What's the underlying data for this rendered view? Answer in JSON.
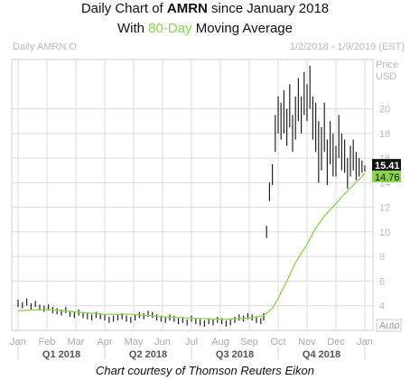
{
  "header": {
    "line1_prefix": "Daily Chart of ",
    "ticker": "AMRN",
    "line1_suffix": " since January 2018",
    "line2_prefix": "With ",
    "ma_label": "80-Day",
    "line2_suffix": " Moving Average",
    "ma_color": "#8ad44c"
  },
  "subheader": {
    "symbol": "Daily AMRN.O",
    "date_range": "1/2/2018 - 1/9/2019 (EST)"
  },
  "credit": "Chart courtesy of Thomson Reuters Eikon",
  "chart_data": {
    "type": "line",
    "title": "",
    "ylabel_lines": [
      "Price",
      "USD"
    ],
    "auto_label": "Auto",
    "ylim": [
      2,
      24
    ],
    "y_ticks": [
      4,
      6,
      8,
      10,
      12,
      14,
      16,
      18,
      20
    ],
    "grid": true,
    "x_month_ticks": [
      "Jan",
      "Feb",
      "Mar",
      "Apr",
      "May",
      "Jun",
      "Jul",
      "Aug",
      "Sep",
      "Oct",
      "Nov",
      "Dec",
      "Jan"
    ],
    "quarter_labels": [
      "Q1 2018",
      "Q2 2018",
      "Q3 2018",
      "Q4 2018"
    ],
    "last_price": {
      "value": 15.41,
      "label": "15.41",
      "bg": "#111111",
      "fg": "#ffffff"
    },
    "last_ma": {
      "value": 14.76,
      "label": "14.76",
      "bg": "#8ad44c",
      "fg": "#111111"
    },
    "series": [
      {
        "kind": "price",
        "color": "#222222",
        "x": [
          0.0,
          0.15,
          0.3,
          0.45,
          0.6,
          0.75,
          0.9,
          1.05,
          1.2,
          1.35,
          1.5,
          1.65,
          1.8,
          1.95,
          2.1,
          2.25,
          2.4,
          2.55,
          2.7,
          2.85,
          3.0,
          3.15,
          3.3,
          3.45,
          3.6,
          3.75,
          3.9,
          4.05,
          4.2,
          4.35,
          4.5,
          4.65,
          4.8,
          4.95,
          5.1,
          5.25,
          5.4,
          5.55,
          5.7,
          5.85,
          6.0,
          6.15,
          6.3,
          6.45,
          6.6,
          6.75,
          6.9,
          7.05,
          7.2,
          7.35,
          7.5,
          7.65,
          7.8,
          7.95,
          8.1,
          8.25,
          8.4,
          8.5,
          8.6,
          8.7,
          8.8,
          8.9,
          9.0,
          9.1,
          9.2,
          9.3,
          9.4,
          9.5,
          9.6,
          9.7,
          9.8,
          9.9,
          10.0,
          10.1,
          10.2,
          10.3,
          10.4,
          10.5,
          10.6,
          10.7,
          10.8,
          10.9,
          11.0,
          11.1,
          11.2,
          11.3,
          11.4,
          11.5,
          11.6,
          11.7,
          11.8,
          11.9,
          12.0
        ],
        "high": [
          4.5,
          4.3,
          4.6,
          4.2,
          4.4,
          4.1,
          4.0,
          4.1,
          3.9,
          3.8,
          3.7,
          3.9,
          3.6,
          3.5,
          3.7,
          3.5,
          3.4,
          3.3,
          3.5,
          3.4,
          3.3,
          3.1,
          3.2,
          3.3,
          3.4,
          3.2,
          3.1,
          3.3,
          3.5,
          3.4,
          3.6,
          3.5,
          3.3,
          3.2,
          3.1,
          3.3,
          3.2,
          3.0,
          3.1,
          2.9,
          3.2,
          3.0,
          2.9,
          2.8,
          3.0,
          2.9,
          3.1,
          3.0,
          2.8,
          2.9,
          3.1,
          3.3,
          3.2,
          3.4,
          3.3,
          3.1,
          3.0,
          3.4,
          10.5,
          14.0,
          15.5,
          19.5,
          21.0,
          20.5,
          21.5,
          20.0,
          22.0,
          19.5,
          21.0,
          22.5,
          21.0,
          23.0,
          22.0,
          23.5,
          21.0,
          20.5,
          19.0,
          18.5,
          20.5,
          17.5,
          19.0,
          18.0,
          17.0,
          19.5,
          18.0,
          17.5,
          16.0,
          17.0,
          17.5,
          16.5,
          16.0,
          15.8,
          15.4
        ],
        "low": [
          3.9,
          3.8,
          4.0,
          3.7,
          3.9,
          3.6,
          3.5,
          3.6,
          3.4,
          3.3,
          3.2,
          3.4,
          3.1,
          3.0,
          3.2,
          3.0,
          2.9,
          2.8,
          3.0,
          2.9,
          2.8,
          2.6,
          2.7,
          2.8,
          2.9,
          2.7,
          2.6,
          2.8,
          3.0,
          2.9,
          3.1,
          3.0,
          2.8,
          2.7,
          2.6,
          2.8,
          2.7,
          2.5,
          2.6,
          2.4,
          2.7,
          2.5,
          2.4,
          2.3,
          2.5,
          2.4,
          2.6,
          2.5,
          2.3,
          2.4,
          2.6,
          2.8,
          2.7,
          2.9,
          2.8,
          2.6,
          2.5,
          2.8,
          9.5,
          12.5,
          13.8,
          16.5,
          18.0,
          17.5,
          18.0,
          17.0,
          18.5,
          16.5,
          17.5,
          19.0,
          18.0,
          19.5,
          19.0,
          20.0,
          17.5,
          16.5,
          14.0,
          15.0,
          16.5,
          13.8,
          15.5,
          14.5,
          14.5,
          16.0,
          15.0,
          14.8,
          13.5,
          14.5,
          15.0,
          14.2,
          14.5,
          14.8,
          14.9
        ]
      },
      {
        "kind": "moving_average",
        "color": "#8ad44c",
        "x": [
          0.0,
          1.0,
          2.0,
          3.0,
          4.0,
          5.0,
          6.0,
          7.0,
          8.0,
          8.5,
          8.8,
          9.0,
          9.3,
          9.6,
          10.0,
          10.3,
          10.6,
          11.0,
          11.3,
          11.6,
          11.9,
          12.0
        ],
        "values": [
          3.6,
          3.7,
          3.5,
          3.3,
          3.3,
          3.1,
          3.0,
          2.9,
          3.0,
          3.2,
          3.8,
          4.6,
          6.0,
          7.5,
          9.0,
          10.3,
          11.3,
          12.3,
          13.1,
          13.8,
          14.5,
          14.76
        ]
      }
    ]
  }
}
